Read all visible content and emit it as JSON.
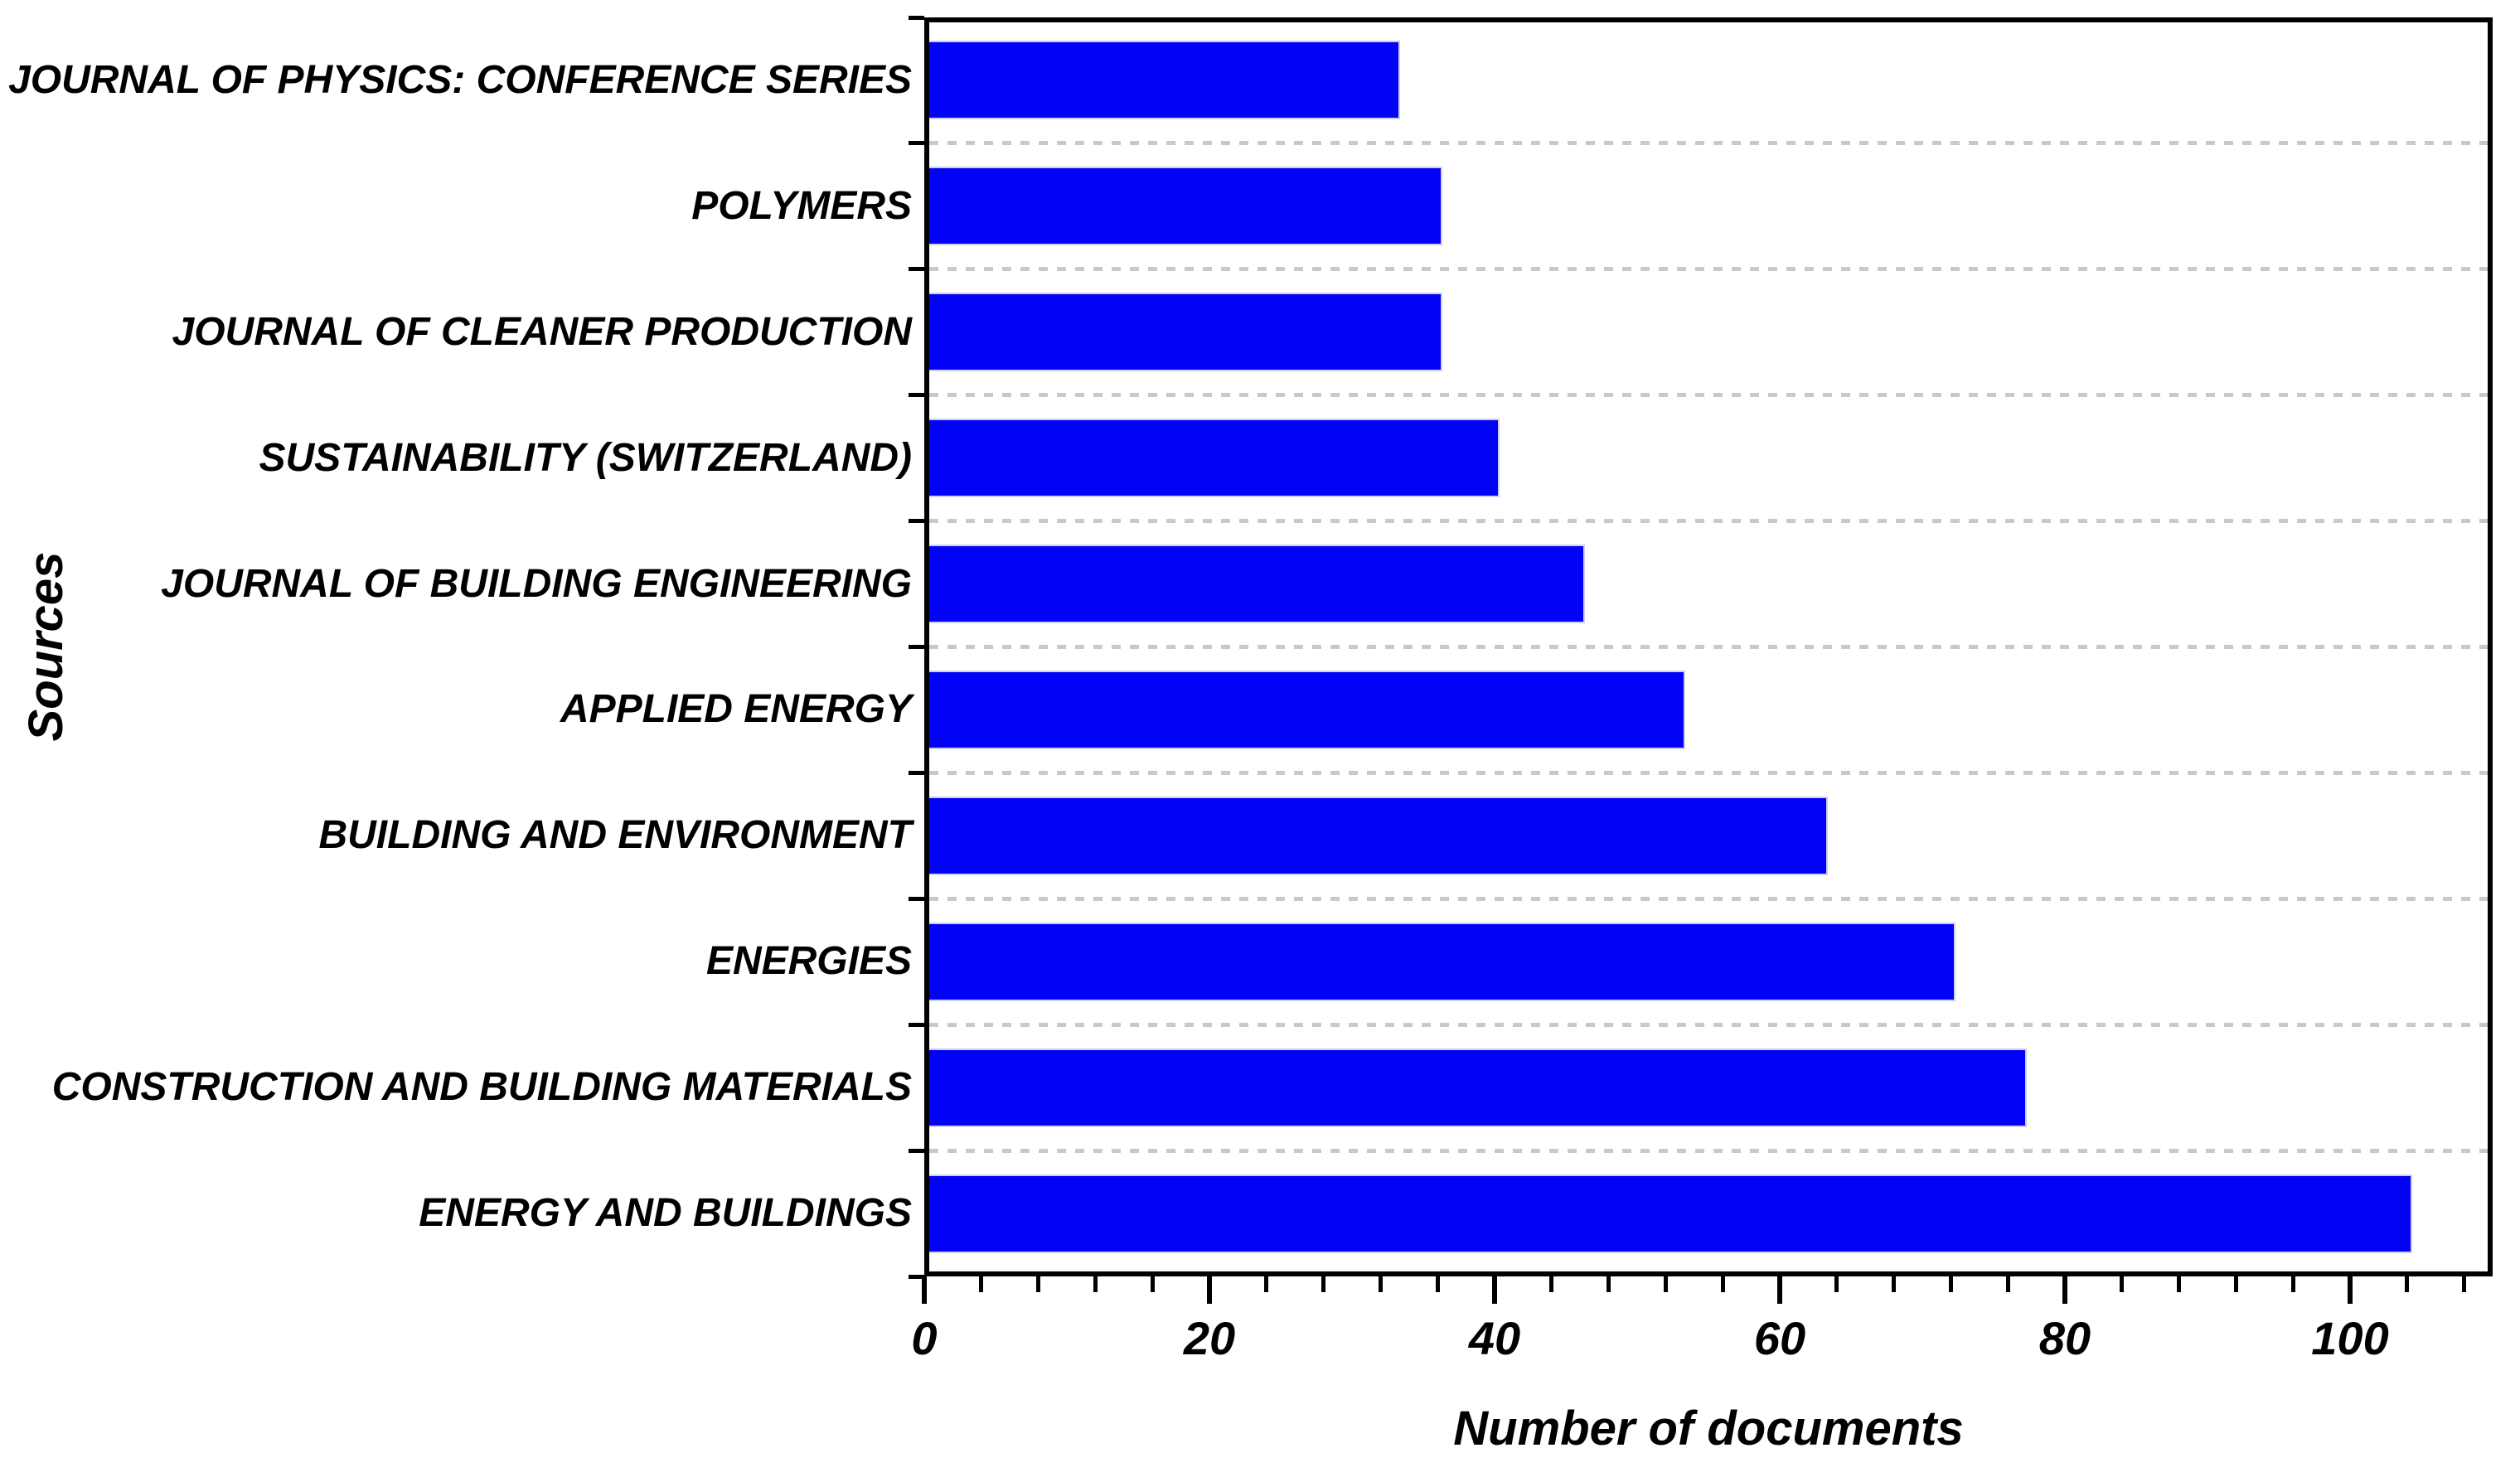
{
  "chart_data": {
    "type": "bar",
    "orientation": "horizontal",
    "title": "",
    "xlabel": "Number of documents",
    "ylabel": "Sources",
    "categories": [
      "JOURNAL OF PHYSICS: CONFERENCE SERIES",
      "POLYMERS",
      "JOURNAL OF CLEANER PRODUCTION",
      "SUSTAINABILITY (SWITZERLAND)",
      "JOURNAL OF BUILDING ENGINEERING",
      "APPLIED ENERGY",
      "BUILDING AND ENVIRONMENT",
      "ENERGIES",
      "CONSTRUCTION AND BUILDING MATERIALS",
      "ENERGY AND BUILDINGS"
    ],
    "values": [
      33,
      36,
      36,
      40,
      46,
      53,
      63,
      72,
      77,
      104
    ],
    "category_order_note": "listed top to bottom as displayed",
    "xlim": [
      0,
      110
    ],
    "x_major_ticks": [
      0,
      20,
      40,
      60,
      80,
      100
    ],
    "x_minor_tick_step": 4,
    "grid": "dotted horizontal separator lines between category slots",
    "legend": null,
    "bar_color": "#0202f6",
    "grid_color": "#c9c9c9",
    "axis_color": "#000000",
    "text_color": "#000000"
  }
}
